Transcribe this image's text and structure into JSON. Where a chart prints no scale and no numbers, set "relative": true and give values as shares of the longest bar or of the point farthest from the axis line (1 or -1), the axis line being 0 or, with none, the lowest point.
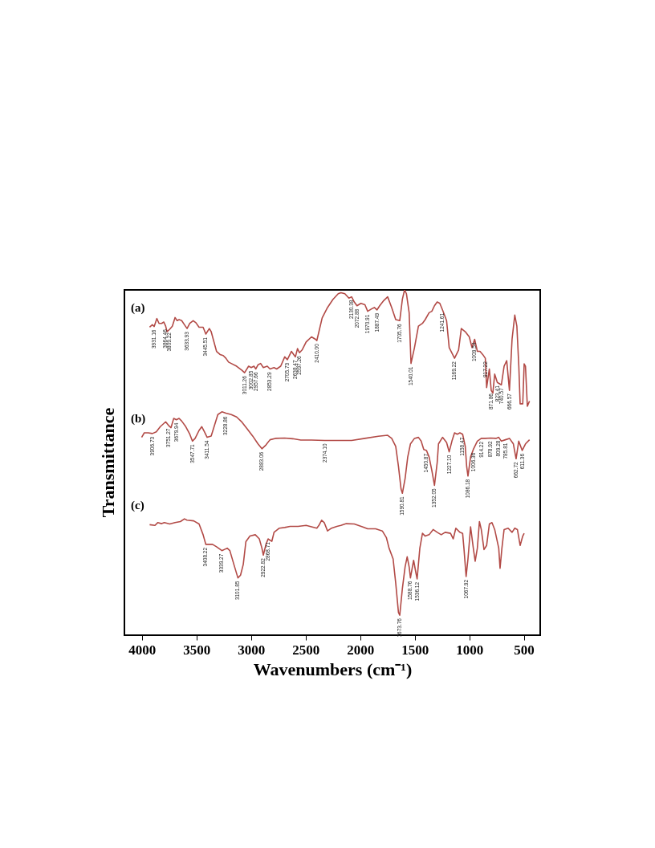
{
  "chart_data": {
    "type": "line",
    "relative": true,
    "xlabel": "Wavenumbers (cm⁻¹)",
    "ylabel": "Transmittance",
    "xlim": [
      4160,
      350
    ],
    "xticks": [
      4000,
      3500,
      3000,
      2500,
      2000,
      1500,
      1000,
      500
    ],
    "tick_labels": "x",
    "series": [
      {
        "name": "(a)",
        "color": "#b24a46",
        "x": [
          3929,
          3904,
          3887,
          3863,
          3843,
          3819,
          3799,
          3782,
          3770,
          3745,
          3721,
          3696,
          3677,
          3659,
          3635,
          3610,
          3586,
          3561,
          3530,
          3505,
          3476,
          3439,
          3414,
          3382,
          3365,
          3316,
          3284,
          3255,
          3230,
          3206,
          3181,
          3132,
          3083,
          3059,
          3022,
          2998,
          2973,
          2956,
          2936,
          2912,
          2887,
          2851,
          2826,
          2789,
          2765,
          2728,
          2691,
          2667,
          2630,
          2593,
          2574,
          2556,
          2532,
          2495,
          2446,
          2409,
          2397,
          2348,
          2299,
          2250,
          2201,
          2176,
          2140,
          2103,
          2078,
          2054,
          2029,
          1993,
          1956,
          1931,
          1895,
          1870,
          1846,
          1821,
          1784,
          1748,
          1711,
          1674,
          1637,
          1613,
          1593,
          1576,
          1551,
          1534,
          1502,
          1466,
          1429,
          1404,
          1368,
          1343,
          1319,
          1294,
          1270,
          1245,
          1208,
          1184,
          1135,
          1098,
          1073,
          1037,
          1000,
          975,
          951,
          926,
          902,
          877,
          853,
          841,
          816,
          799,
          784,
          767,
          743,
          706,
          681,
          657,
          632,
          608,
          583,
          564,
          546,
          534,
          510,
          497,
          485,
          468,
          448
        ],
        "values": [
          0.892,
          0.899,
          0.894,
          0.917,
          0.903,
          0.903,
          0.907,
          0.895,
          0.879,
          0.886,
          0.895,
          0.92,
          0.911,
          0.914,
          0.911,
          0.899,
          0.888,
          0.903,
          0.911,
          0.905,
          0.892,
          0.892,
          0.872,
          0.888,
          0.879,
          0.822,
          0.813,
          0.81,
          0.802,
          0.791,
          0.787,
          0.779,
          0.767,
          0.76,
          0.779,
          0.775,
          0.779,
          0.771,
          0.783,
          0.787,
          0.775,
          0.779,
          0.771,
          0.775,
          0.771,
          0.779,
          0.806,
          0.798,
          0.822,
          0.806,
          0.83,
          0.818,
          0.826,
          0.849,
          0.864,
          0.857,
          0.853,
          0.919,
          0.949,
          0.972,
          0.989,
          0.992,
          0.989,
          0.976,
          0.98,
          0.965,
          0.954,
          0.961,
          0.957,
          0.938,
          0.945,
          0.949,
          0.942,
          0.954,
          0.969,
          0.98,
          0.949,
          0.914,
          0.911,
          0.973,
          1,
          0.989,
          0.934,
          0.787,
          0.833,
          0.895,
          0.903,
          0.914,
          0.934,
          0.938,
          0.954,
          0.965,
          0.961,
          0.942,
          0.911,
          0.833,
          0.802,
          0.826,
          0.888,
          0.879,
          0.864,
          0.833,
          0.857,
          0.822,
          0.822,
          0.813,
          0.802,
          0.717,
          0.771,
          0.709,
          0.701,
          0.756,
          0.732,
          0.725,
          0.779,
          0.795,
          0.709,
          0.857,
          0.927,
          0.895,
          0.779,
          0.67,
          0.67,
          0.786,
          0.779,
          0.663,
          0.678
        ]
      },
      {
        "name": "(b)",
        "color": "#b24a46",
        "x": [
          4002,
          3978,
          3941,
          3904,
          3868,
          3831,
          3782,
          3757,
          3733,
          3708,
          3684,
          3659,
          3635,
          3598,
          3561,
          3537,
          3512,
          3476,
          3451,
          3427,
          3402,
          3365,
          3341,
          3304,
          3267,
          3230,
          3181,
          3132,
          3083,
          3034,
          2985,
          2936,
          2900,
          2863,
          2826,
          2777,
          2691,
          2618,
          2544,
          2446,
          2324,
          2176,
          2078,
          1956,
          1833,
          1748,
          1711,
          1674,
          1649,
          1625,
          1613,
          1588,
          1564,
          1539,
          1502,
          1466,
          1441,
          1417,
          1392,
          1368,
          1343,
          1319,
          1294,
          1282,
          1245,
          1208,
          1184,
          1159,
          1135,
          1110,
          1086,
          1061,
          1037,
          1024,
          1012,
          988,
          963,
          926,
          890,
          853,
          804,
          755,
          730,
          706,
          669,
          632,
          596,
          571,
          547,
          515,
          485,
          448
        ],
        "values": [
          0.573,
          0.586,
          0.586,
          0.584,
          0.589,
          0.604,
          0.618,
          0.608,
          0.601,
          0.628,
          0.624,
          0.628,
          0.62,
          0.604,
          0.582,
          0.562,
          0.57,
          0.593,
          0.604,
          0.589,
          0.573,
          0.577,
          0.601,
          0.639,
          0.647,
          0.643,
          0.639,
          0.632,
          0.617,
          0.597,
          0.577,
          0.554,
          0.54,
          0.551,
          0.566,
          0.57,
          0.571,
          0.569,
          0.565,
          0.565,
          0.564,
          0.564,
          0.564,
          0.57,
          0.576,
          0.579,
          0.57,
          0.547,
          0.489,
          0.423,
          0.411,
          0.454,
          0.516,
          0.554,
          0.57,
          0.573,
          0.562,
          0.538,
          0.535,
          0.516,
          0.477,
          0.434,
          0.5,
          0.554,
          0.573,
          0.558,
          0.531,
          0.562,
          0.586,
          0.582,
          0.586,
          0.582,
          0.547,
          0.489,
          0.461,
          0.516,
          0.538,
          0.562,
          0.57,
          0.57,
          0.571,
          0.57,
          0.573,
          0.562,
          0.566,
          0.57,
          0.554,
          0.511,
          0.562,
          0.535,
          0.554,
          0.566
        ]
      },
      {
        "name": "(c)",
        "color": "#b24a46",
        "x": [
          3929,
          3880,
          3855,
          3819,
          3794,
          3745,
          3696,
          3647,
          3610,
          3586,
          3525,
          3476,
          3439,
          3414,
          3390,
          3353,
          3316,
          3267,
          3218,
          3194,
          3157,
          3120,
          3096,
          3071,
          3047,
          3010,
          2961,
          2924,
          2900,
          2887,
          2863,
          2843,
          2826,
          2809,
          2789,
          2740,
          2691,
          2642,
          2569,
          2495,
          2446,
          2397,
          2378,
          2353,
          2329,
          2299,
          2262,
          2213,
          2176,
          2127,
          2054,
          1980,
          1931,
          1858,
          1797,
          1760,
          1735,
          1698,
          1674,
          1649,
          1637,
          1613,
          1588,
          1569,
          1551,
          1539,
          1510,
          1490,
          1478,
          1453,
          1429,
          1404,
          1368,
          1331,
          1294,
          1257,
          1221,
          1172,
          1147,
          1123,
          1086,
          1061,
          1049,
          1029,
          1012,
          988,
          963,
          946,
          926,
          907,
          890,
          865,
          841,
          816,
          792,
          767,
          730,
          718,
          701,
          681,
          644,
          608,
          583,
          559,
          534,
          510,
          497
        ],
        "values": [
          0.32,
          0.318,
          0.326,
          0.323,
          0.326,
          0.322,
          0.326,
          0.329,
          0.337,
          0.333,
          0.331,
          0.322,
          0.291,
          0.263,
          0.263,
          0.263,
          0.256,
          0.245,
          0.252,
          0.245,
          0.205,
          0.166,
          0.174,
          0.205,
          0.271,
          0.287,
          0.291,
          0.279,
          0.252,
          0.232,
          0.263,
          0.279,
          0.275,
          0.272,
          0.298,
          0.31,
          0.312,
          0.315,
          0.315,
          0.318,
          0.314,
          0.31,
          0.318,
          0.333,
          0.326,
          0.302,
          0.31,
          0.315,
          0.318,
          0.323,
          0.322,
          0.314,
          0.308,
          0.308,
          0.302,
          0.283,
          0.252,
          0.221,
          0.151,
          0.066,
          0.058,
          0.135,
          0.198,
          0.227,
          0.198,
          0.166,
          0.217,
          0.182,
          0.163,
          0.252,
          0.295,
          0.287,
          0.291,
          0.306,
          0.298,
          0.291,
          0.298,
          0.295,
          0.279,
          0.31,
          0.298,
          0.295,
          0.252,
          0.17,
          0.221,
          0.314,
          0.252,
          0.214,
          0.252,
          0.329,
          0.306,
          0.248,
          0.26,
          0.322,
          0.326,
          0.306,
          0.252,
          0.194,
          0.252,
          0.306,
          0.31,
          0.298,
          0.31,
          0.306,
          0.26,
          0.287,
          0.295
        ]
      }
    ],
    "annotations": [
      {
        "text": "3931.16",
        "x": 3887,
        "y": 0.894
      },
      {
        "text": "3864.46",
        "x": 3782,
        "y": 0.895
      },
      {
        "text": "3809.22",
        "x": 3745,
        "y": 0.886
      },
      {
        "text": "3633.93",
        "x": 3586,
        "y": 0.888
      },
      {
        "text": "3445.51",
        "x": 3414,
        "y": 0.872
      },
      {
        "text": "3011.26",
        "x": 3059,
        "y": 0.76
      },
      {
        "text": "3002.85",
        "x": 2998,
        "y": 0.775
      },
      {
        "text": "2957.66",
        "x": 2956,
        "y": 0.771
      },
      {
        "text": "2853.29",
        "x": 2826,
        "y": 0.771
      },
      {
        "text": "2705.73",
        "x": 2667,
        "y": 0.798
      },
      {
        "text": "2638.47",
        "x": 2593,
        "y": 0.806
      },
      {
        "text": "2597.26",
        "x": 2556,
        "y": 0.818
      },
      {
        "text": "2410.00",
        "x": 2397,
        "y": 0.853
      },
      {
        "text": "2130.38",
        "x": 2078,
        "y": 0.98
      },
      {
        "text": "2072.88",
        "x": 2029,
        "y": 0.954
      },
      {
        "text": "1970.91",
        "x": 1931,
        "y": 0.938
      },
      {
        "text": "1887.49",
        "x": 1846,
        "y": 0.942
      },
      {
        "text": "1705.76",
        "x": 1637,
        "y": 0.911
      },
      {
        "text": "1540.01",
        "x": 1534,
        "y": 0.787
      },
      {
        "text": "1241.61",
        "x": 1245,
        "y": 0.942
      },
      {
        "text": "1169.22",
        "x": 1135,
        "y": 0.802
      },
      {
        "text": "1009.54",
        "x": 951,
        "y": 0.857
      },
      {
        "text": "917.22",
        "x": 853,
        "y": 0.802
      },
      {
        "text": "871.86",
        "x": 799,
        "y": 0.709
      },
      {
        "text": "823.41",
        "x": 743,
        "y": 0.732
      },
      {
        "text": "740.57",
        "x": 706,
        "y": 0.725
      },
      {
        "text": "666.57",
        "x": 632,
        "y": 0.709
      },
      {
        "text": "3906.73",
        "x": 3904,
        "y": 0.584
      },
      {
        "text": "3751.27",
        "x": 3757,
        "y": 0.608
      },
      {
        "text": "3679.94",
        "x": 3684,
        "y": 0.624
      },
      {
        "text": "3547.71",
        "x": 3537,
        "y": 0.562
      },
      {
        "text": "3411.54",
        "x": 3402,
        "y": 0.573
      },
      {
        "text": "3228.86",
        "x": 3230,
        "y": 0.643
      },
      {
        "text": "2883.06",
        "x": 2900,
        "y": 0.54
      },
      {
        "text": "2374.10",
        "x": 2324,
        "y": 0.564
      },
      {
        "text": "1590.81",
        "x": 1613,
        "y": 0.411
      },
      {
        "text": "1450.87",
        "x": 1392,
        "y": 0.535
      },
      {
        "text": "1352.05",
        "x": 1319,
        "y": 0.434
      },
      {
        "text": "1227.10",
        "x": 1184,
        "y": 0.531
      },
      {
        "text": "1158.47",
        "x": 1061,
        "y": 0.582
      },
      {
        "text": "1086.18",
        "x": 1012,
        "y": 0.461
      },
      {
        "text": "1006.36",
        "x": 963,
        "y": 0.538
      },
      {
        "text": "914.22",
        "x": 890,
        "y": 0.57
      },
      {
        "text": "878.92",
        "x": 804,
        "y": 0.571
      },
      {
        "text": "809.28",
        "x": 730,
        "y": 0.573
      },
      {
        "text": "785.81",
        "x": 669,
        "y": 0.566
      },
      {
        "text": "662.72",
        "x": 571,
        "y": 0.511
      },
      {
        "text": "611.36",
        "x": 515,
        "y": 0.535
      },
      {
        "text": "3408.22",
        "x": 3414,
        "y": 0.263
      },
      {
        "text": "3339.27",
        "x": 3267,
        "y": 0.245
      },
      {
        "text": "3101.85",
        "x": 3120,
        "y": 0.166
      },
      {
        "text": "2922.82",
        "x": 2887,
        "y": 0.232
      },
      {
        "text": "2868.71",
        "x": 2843,
        "y": 0.279
      },
      {
        "text": "1673.76",
        "x": 1637,
        "y": 0.058
      },
      {
        "text": "1588.76",
        "x": 1539,
        "y": 0.166
      },
      {
        "text": "1536.12",
        "x": 1478,
        "y": 0.163
      },
      {
        "text": "1067.92",
        "x": 1029,
        "y": 0.17
      }
    ]
  }
}
